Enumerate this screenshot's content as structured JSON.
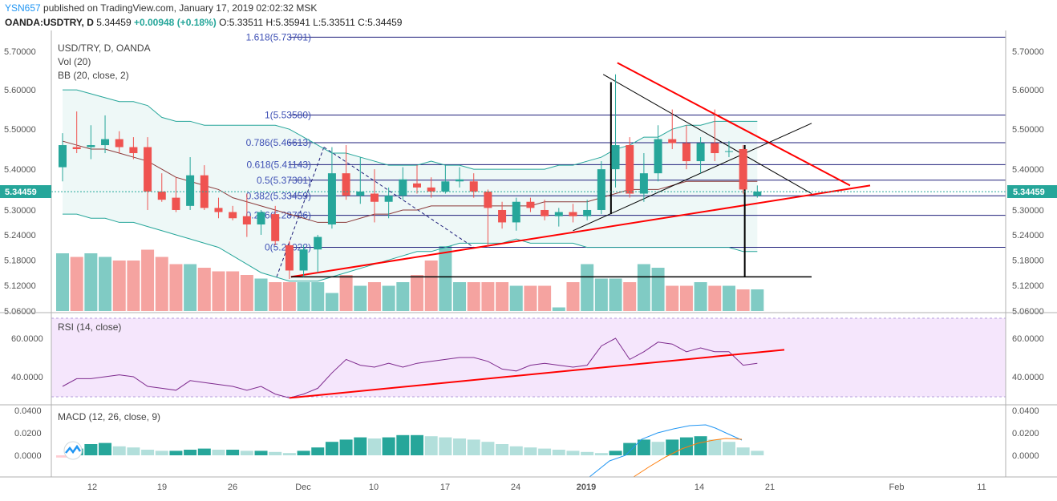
{
  "header": {
    "user": "YSN657",
    "published": "published on TradingView.com, January 17, 2019 02:02:32 MSK",
    "symbol": "OANDA:USDTRY, D",
    "last": "5.34459",
    "change": "+0.00948 (+0.18%)",
    "ohlc": "O:5.33511 H:5.35941 L:5.33511 C:5.34459"
  },
  "pane_labels": {
    "symbol": "USD/TRY, D, OANDA",
    "vol": "Vol (20)",
    "bb": "BB (20, close, 2)",
    "rsi": "RSI (14, close)",
    "macd": "MACD (12, 26, close, 9)",
    "price_badge": "5.34459"
  },
  "colors": {
    "up": "#26a69a",
    "down": "#ef5350",
    "bb": "#26a69a",
    "basis": "#8b3a3a",
    "trend": "#ff0000",
    "fib": "#1e1e7a",
    "rsi": "#7e2b8e",
    "macd": "#2196f3",
    "signal": "#ff7f0e"
  },
  "chart_data": [
    {
      "type": "candlestick",
      "title": "USD/TRY, D, OANDA",
      "x_ticks": [
        "12",
        "19",
        "26",
        "Dec",
        "10",
        "17",
        "24",
        "2019",
        "14",
        "21",
        "Feb",
        "11"
      ],
      "y_ticks": [
        "5.06000",
        "5.12000",
        "5.18000",
        "5.24000",
        "5.30000",
        "5.40000",
        "5.50000",
        "5.60000",
        "5.70000"
      ],
      "y_scale": "log",
      "candles": [
        {
          "d": "2018-11-08",
          "o": 5.405,
          "h": 5.49,
          "l": 5.37,
          "c": 5.46
        },
        {
          "d": "2018-11-09",
          "o": 5.455,
          "h": 5.545,
          "l": 5.44,
          "c": 5.45
        },
        {
          "d": "2018-11-12",
          "o": 5.455,
          "h": 5.51,
          "l": 5.425,
          "c": 5.46
        },
        {
          "d": "2018-11-13",
          "o": 5.46,
          "h": 5.535,
          "l": 5.44,
          "c": 5.475
        },
        {
          "d": "2018-11-14",
          "o": 5.475,
          "h": 5.495,
          "l": 5.44,
          "c": 5.455
        },
        {
          "d": "2018-11-15",
          "o": 5.455,
          "h": 5.48,
          "l": 5.425,
          "c": 5.44
        },
        {
          "d": "2018-11-16",
          "o": 5.455,
          "h": 5.48,
          "l": 5.3,
          "c": 5.345
        },
        {
          "d": "2018-11-19",
          "o": 5.345,
          "h": 5.39,
          "l": 5.32,
          "c": 5.325
        },
        {
          "d": "2018-11-20",
          "o": 5.33,
          "h": 5.38,
          "l": 5.295,
          "c": 5.3
        },
        {
          "d": "2018-11-21",
          "o": 5.31,
          "h": 5.43,
          "l": 5.3,
          "c": 5.385
        },
        {
          "d": "2018-11-22",
          "o": 5.385,
          "h": 5.41,
          "l": 5.3,
          "c": 5.305
        },
        {
          "d": "2018-11-23",
          "o": 5.305,
          "h": 5.33,
          "l": 5.28,
          "c": 5.295
        },
        {
          "d": "2018-11-26",
          "o": 5.295,
          "h": 5.31,
          "l": 5.275,
          "c": 5.28
        },
        {
          "d": "2018-11-27",
          "o": 5.285,
          "h": 5.34,
          "l": 5.235,
          "c": 5.265
        },
        {
          "d": "2018-11-28",
          "o": 5.265,
          "h": 5.3,
          "l": 5.24,
          "c": 5.295
        },
        {
          "d": "2018-11-29",
          "o": 5.29,
          "h": 5.31,
          "l": 5.215,
          "c": 5.225
        },
        {
          "d": "2018-11-30",
          "o": 5.215,
          "h": 5.225,
          "l": 5.135,
          "c": 5.155
        },
        {
          "d": "2018-12-03",
          "o": 5.155,
          "h": 5.215,
          "l": 5.14,
          "c": 5.205
        },
        {
          "d": "2018-12-04",
          "o": 5.205,
          "h": 5.24,
          "l": 5.15,
          "c": 5.235
        },
        {
          "d": "2018-12-05",
          "o": 5.265,
          "h": 5.455,
          "l": 5.255,
          "c": 5.39
        },
        {
          "d": "2018-12-06",
          "o": 5.39,
          "h": 5.46,
          "l": 5.325,
          "c": 5.335
        },
        {
          "d": "2018-12-07",
          "o": 5.335,
          "h": 5.43,
          "l": 5.315,
          "c": 5.345
        },
        {
          "d": "2018-12-10",
          "o": 5.34,
          "h": 5.4,
          "l": 5.27,
          "c": 5.32
        },
        {
          "d": "2018-12-11",
          "o": 5.32,
          "h": 5.355,
          "l": 5.28,
          "c": 5.335
        },
        {
          "d": "2018-12-12",
          "o": 5.335,
          "h": 5.405,
          "l": 5.325,
          "c": 5.375
        },
        {
          "d": "2018-12-13",
          "o": 5.365,
          "h": 5.41,
          "l": 5.34,
          "c": 5.355
        },
        {
          "d": "2018-12-14",
          "o": 5.355,
          "h": 5.38,
          "l": 5.33,
          "c": 5.345
        },
        {
          "d": "2018-12-17",
          "o": 5.345,
          "h": 5.41,
          "l": 5.34,
          "c": 5.37
        },
        {
          "d": "2018-12-18",
          "o": 5.37,
          "h": 5.405,
          "l": 5.355,
          "c": 5.375
        },
        {
          "d": "2018-12-19",
          "o": 5.37,
          "h": 5.39,
          "l": 5.33,
          "c": 5.345
        },
        {
          "d": "2018-12-20",
          "o": 5.345,
          "h": 5.35,
          "l": 5.21,
          "c": 5.305
        },
        {
          "d": "2018-12-21",
          "o": 5.3,
          "h": 5.32,
          "l": 5.255,
          "c": 5.27
        },
        {
          "d": "2018-12-24",
          "o": 5.27,
          "h": 5.33,
          "l": 5.25,
          "c": 5.32
        },
        {
          "d": "2018-12-25",
          "o": 5.32,
          "h": 5.33,
          "l": 5.295,
          "c": 5.305
        },
        {
          "d": "2018-12-26",
          "o": 5.3,
          "h": 5.325,
          "l": 5.275,
          "c": 5.285
        },
        {
          "d": "2018-12-27",
          "o": 5.285,
          "h": 5.305,
          "l": 5.26,
          "c": 5.295
        },
        {
          "d": "2018-12-28",
          "o": 5.295,
          "h": 5.315,
          "l": 5.27,
          "c": 5.285
        },
        {
          "d": "2018-12-31",
          "o": 5.285,
          "h": 5.325,
          "l": 5.275,
          "c": 5.3
        },
        {
          "d": "2019-01-01",
          "o": 5.3,
          "h": 5.42,
          "l": 5.29,
          "c": 5.4
        },
        {
          "d": "2019-01-02",
          "o": 5.4,
          "h": 5.64,
          "l": 5.355,
          "c": 5.46
        },
        {
          "d": "2019-01-03",
          "o": 5.46,
          "h": 5.48,
          "l": 5.33,
          "c": 5.34
        },
        {
          "d": "2019-01-04",
          "o": 5.34,
          "h": 5.44,
          "l": 5.32,
          "c": 5.39
        },
        {
          "d": "2019-01-07",
          "o": 5.39,
          "h": 5.51,
          "l": 5.37,
          "c": 5.475
        },
        {
          "d": "2019-01-08",
          "o": 5.475,
          "h": 5.55,
          "l": 5.45,
          "c": 5.465
        },
        {
          "d": "2019-01-09",
          "o": 5.465,
          "h": 5.51,
          "l": 5.4,
          "c": 5.42
        },
        {
          "d": "2019-01-10",
          "o": 5.42,
          "h": 5.48,
          "l": 5.39,
          "c": 5.465
        },
        {
          "d": "2019-01-11",
          "o": 5.465,
          "h": 5.55,
          "l": 5.42,
          "c": 5.44
        },
        {
          "d": "2019-01-14",
          "o": 5.445,
          "h": 5.47,
          "l": 5.43,
          "c": 5.445
        },
        {
          "d": "2019-01-15",
          "o": 5.45,
          "h": 5.46,
          "l": 5.34,
          "c": 5.35
        },
        {
          "d": "2019-01-16",
          "o": 5.335,
          "h": 5.36,
          "l": 5.33,
          "c": 5.345
        }
      ],
      "volume": [
        1.6,
        1.5,
        1.6,
        1.5,
        1.4,
        1.4,
        1.7,
        1.5,
        1.3,
        1.3,
        1.2,
        1.1,
        1.1,
        1.0,
        0.9,
        0.8,
        0.8,
        0.8,
        0.8,
        0.5,
        1.0,
        0.7,
        0.8,
        0.7,
        0.8,
        1.0,
        1.4,
        1.8,
        0.8,
        0.8,
        0.8,
        0.8,
        0.7,
        0.7,
        0.7,
        0.1,
        0.8,
        1.3,
        0.9,
        0.9,
        0.8,
        1.3,
        1.2,
        0.7,
        0.7,
        0.8,
        0.7,
        0.7,
        0.6,
        0.6
      ],
      "bb_upper": [
        5.6,
        5.6,
        5.59,
        5.58,
        5.57,
        5.57,
        5.56,
        5.53,
        5.52,
        5.52,
        5.51,
        5.51,
        5.51,
        5.51,
        5.51,
        5.51,
        5.5,
        5.48,
        5.46,
        5.44,
        5.44,
        5.43,
        5.42,
        5.41,
        5.41,
        5.41,
        5.42,
        5.41,
        5.41,
        5.4,
        5.4,
        5.4,
        5.4,
        5.4,
        5.4,
        5.41,
        5.41,
        5.42,
        5.43,
        5.45,
        5.46,
        5.48,
        5.48,
        5.5,
        5.51,
        5.51,
        5.52,
        5.52,
        5.52,
        5.52
      ],
      "bb_basis": [
        5.47,
        5.46,
        5.45,
        5.45,
        5.44,
        5.43,
        5.42,
        5.4,
        5.38,
        5.37,
        5.36,
        5.35,
        5.33,
        5.32,
        5.31,
        5.3,
        5.29,
        5.28,
        5.27,
        5.27,
        5.27,
        5.28,
        5.29,
        5.29,
        5.3,
        5.3,
        5.31,
        5.31,
        5.31,
        5.31,
        5.31,
        5.31,
        5.31,
        5.31,
        5.32,
        5.32,
        5.32,
        5.32,
        5.33,
        5.34,
        5.35,
        5.35,
        5.35,
        5.36,
        5.37,
        5.37,
        5.37,
        5.37,
        5.37,
        5.37
      ],
      "bb_lower": [
        5.29,
        5.29,
        5.28,
        5.28,
        5.27,
        5.27,
        5.26,
        5.25,
        5.24,
        5.23,
        5.22,
        5.21,
        5.19,
        5.17,
        5.15,
        5.14,
        5.13,
        5.13,
        5.13,
        5.14,
        5.15,
        5.16,
        5.17,
        5.18,
        5.19,
        5.2,
        5.2,
        5.21,
        5.22,
        5.22,
        5.22,
        5.22,
        5.23,
        5.22,
        5.22,
        5.22,
        5.22,
        5.21,
        5.21,
        5.21,
        5.21,
        5.21,
        5.21,
        5.21,
        5.21,
        5.21,
        5.21,
        5.21,
        5.2,
        5.2
      ],
      "fib_levels": [
        {
          "label": "1.618(5.73701)",
          "value": 5.73701
        },
        {
          "label": "1(5.53580)",
          "value": 5.5358
        },
        {
          "label": "0.786(5.46613)",
          "value": 5.46613
        },
        {
          "label": "0.618(5.41143)",
          "value": 5.41143
        },
        {
          "label": "0.5(5.37301)",
          "value": 5.37301
        },
        {
          "label": "0.382(5.33459)",
          "value": 5.33459
        },
        {
          "label": "0.236(5.28706)",
          "value": 5.28706
        },
        {
          "label": "0(5.21022)",
          "value": 5.21022
        }
      ]
    },
    {
      "type": "line",
      "title": "RSI (14, close)",
      "y_ticks": [
        "40.0000",
        "60.0000"
      ],
      "values": [
        35,
        39,
        39,
        40,
        41,
        40,
        35,
        34,
        33,
        38,
        37,
        36,
        35,
        33,
        35,
        31,
        29,
        31,
        34,
        42,
        49,
        46,
        45,
        47,
        45,
        47,
        48,
        49,
        50,
        50,
        48,
        44,
        43,
        46,
        47,
        46,
        45,
        46,
        56,
        60,
        49,
        53,
        58,
        57,
        53,
        55,
        53,
        53,
        46,
        47
      ]
    },
    {
      "type": "bar",
      "title": "MACD (12, 26, close, 9)",
      "y_ticks": [
        "0.0000",
        "0.0200",
        "0.0400"
      ],
      "histogram": [
        -0.002,
        0.006,
        0.01,
        0.011,
        0.008,
        0.007,
        0.005,
        0.004,
        0.004,
        0.005,
        0.006,
        0.005,
        0.005,
        0.004,
        0.004,
        0.003,
        0.002,
        0.004,
        0.007,
        0.012,
        0.014,
        0.016,
        0.015,
        0.016,
        0.018,
        0.018,
        0.017,
        0.016,
        0.015,
        0.014,
        0.012,
        0.01,
        0.008,
        0.007,
        0.006,
        0.005,
        0.004,
        0.003,
        0.002,
        0.004,
        0.011,
        0.014,
        0.012,
        0.014,
        0.016,
        0.017,
        0.014,
        0.012,
        0.007,
        0.004
      ]
    }
  ]
}
